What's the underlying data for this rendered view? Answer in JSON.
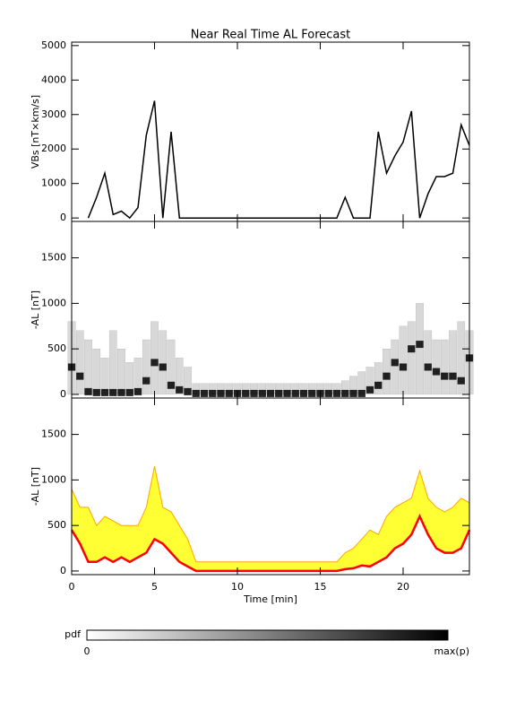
{
  "chart_data": [
    {
      "type": "line",
      "title": "Near Real Time AL Forecast",
      "y_label": "VBs [nT×km/s]",
      "x": [
        0,
        0.5,
        1,
        1.5,
        2,
        2.5,
        3,
        3.5,
        4,
        4.5,
        5,
        5.5,
        6,
        6.5,
        7,
        7.5,
        8,
        8.5,
        9,
        9.5,
        10,
        10.5,
        11,
        11.5,
        12,
        12.5,
        13,
        13.5,
        14,
        14.5,
        15,
        15.5,
        16,
        16.5,
        17,
        17.5,
        18,
        18.5,
        19,
        19.5,
        20,
        20.5,
        21,
        21.5,
        22,
        22.5,
        23,
        23.5,
        24
      ],
      "values": [
        null,
        null,
        0,
        600,
        1300,
        100,
        200,
        0,
        300,
        2400,
        3400,
        0,
        2500,
        0,
        0,
        0,
        0,
        0,
        0,
        0,
        0,
        0,
        0,
        0,
        0,
        0,
        0,
        0,
        0,
        0,
        0,
        0,
        0,
        600,
        0,
        0,
        0,
        2500,
        1300,
        1800,
        2200,
        3100,
        0,
        700,
        1200,
        1200,
        1300,
        2700,
        2100
      ],
      "color": "#000000",
      "xlim": [
        0,
        24
      ],
      "xticks": [
        0,
        5,
        10,
        15,
        20
      ],
      "ylim": [
        -100,
        5100
      ],
      "yticks": [
        0,
        1000,
        2000,
        3000,
        4000,
        5000
      ]
    },
    {
      "type": "density",
      "y_label": "-AL [nT]",
      "x": [
        0,
        0.5,
        1,
        1.5,
        2,
        2.5,
        3,
        3.5,
        4,
        4.5,
        5,
        5.5,
        6,
        6.5,
        7,
        7.5,
        8,
        8.5,
        9,
        9.5,
        10,
        10.5,
        11,
        11.5,
        12,
        12.5,
        13,
        13.5,
        14,
        14.5,
        15,
        15.5,
        16,
        16.5,
        17,
        17.5,
        18,
        18.5,
        19,
        19.5,
        20,
        20.5,
        21,
        21.5,
        22,
        22.5,
        23,
        23.5,
        24
      ],
      "mode": [
        300,
        200,
        30,
        20,
        20,
        20,
        20,
        20,
        30,
        150,
        350,
        300,
        100,
        50,
        30,
        10,
        10,
        10,
        10,
        10,
        10,
        10,
        10,
        10,
        10,
        10,
        10,
        10,
        10,
        10,
        10,
        10,
        10,
        10,
        10,
        10,
        50,
        100,
        200,
        350,
        300,
        500,
        550,
        300,
        250,
        200,
        200,
        150,
        400
      ],
      "upper": [
        800,
        700,
        600,
        500,
        400,
        700,
        500,
        350,
        400,
        600,
        800,
        700,
        600,
        400,
        300,
        120,
        120,
        120,
        120,
        120,
        120,
        120,
        120,
        120,
        120,
        120,
        120,
        120,
        120,
        120,
        120,
        120,
        120,
        150,
        200,
        250,
        300,
        350,
        500,
        600,
        750,
        800,
        1000,
        700,
        600,
        600,
        700,
        800,
        700
      ],
      "color": "#000000",
      "xlim": [
        0,
        24
      ],
      "xticks": [
        0,
        5,
        10,
        15,
        20
      ],
      "ylim": [
        -40,
        1900
      ],
      "yticks": [
        0,
        500,
        1000,
        1500
      ]
    },
    {
      "type": "band",
      "y_label": "-AL [nT]",
      "x_label": "Time [min]",
      "x": [
        0,
        0.5,
        1,
        1.5,
        2,
        2.5,
        3,
        3.5,
        4,
        4.5,
        5,
        5.5,
        6,
        6.5,
        7,
        7.5,
        8,
        8.5,
        9,
        9.5,
        10,
        10.5,
        11,
        11.5,
        12,
        12.5,
        13,
        13.5,
        14,
        14.5,
        15,
        15.5,
        16,
        16.5,
        17,
        17.5,
        18,
        18.5,
        19,
        19.5,
        20,
        20.5,
        21,
        21.5,
        22,
        22.5,
        23,
        23.5,
        24
      ],
      "lower": [
        450,
        300,
        100,
        100,
        150,
        100,
        150,
        100,
        150,
        200,
        350,
        300,
        200,
        100,
        50,
        0,
        0,
        0,
        0,
        0,
        0,
        0,
        0,
        0,
        0,
        0,
        0,
        0,
        0,
        0,
        0,
        0,
        0,
        20,
        30,
        60,
        50,
        100,
        150,
        250,
        300,
        400,
        600,
        400,
        250,
        200,
        200,
        250,
        450
      ],
      "upper": [
        900,
        700,
        700,
        500,
        600,
        550,
        500,
        500,
        500,
        700,
        1150,
        700,
        650,
        500,
        350,
        100,
        100,
        100,
        100,
        100,
        100,
        100,
        100,
        100,
        100,
        100,
        100,
        100,
        100,
        100,
        100,
        100,
        100,
        200,
        250,
        350,
        450,
        400,
        600,
        700,
        750,
        800,
        1100,
        800,
        700,
        650,
        700,
        800,
        750
      ],
      "line_color": "#ff0000",
      "fill_color": "#ffff33",
      "edge_color": "#ffa500",
      "xlim": [
        0,
        24
      ],
      "xticks": [
        0,
        5,
        10,
        15,
        20
      ],
      "ylim": [
        -40,
        1900
      ],
      "yticks": [
        0,
        500,
        1000,
        1500
      ]
    }
  ],
  "colorbar": {
    "label": "pdf",
    "min_label": "0",
    "max_label": "max(p)"
  }
}
